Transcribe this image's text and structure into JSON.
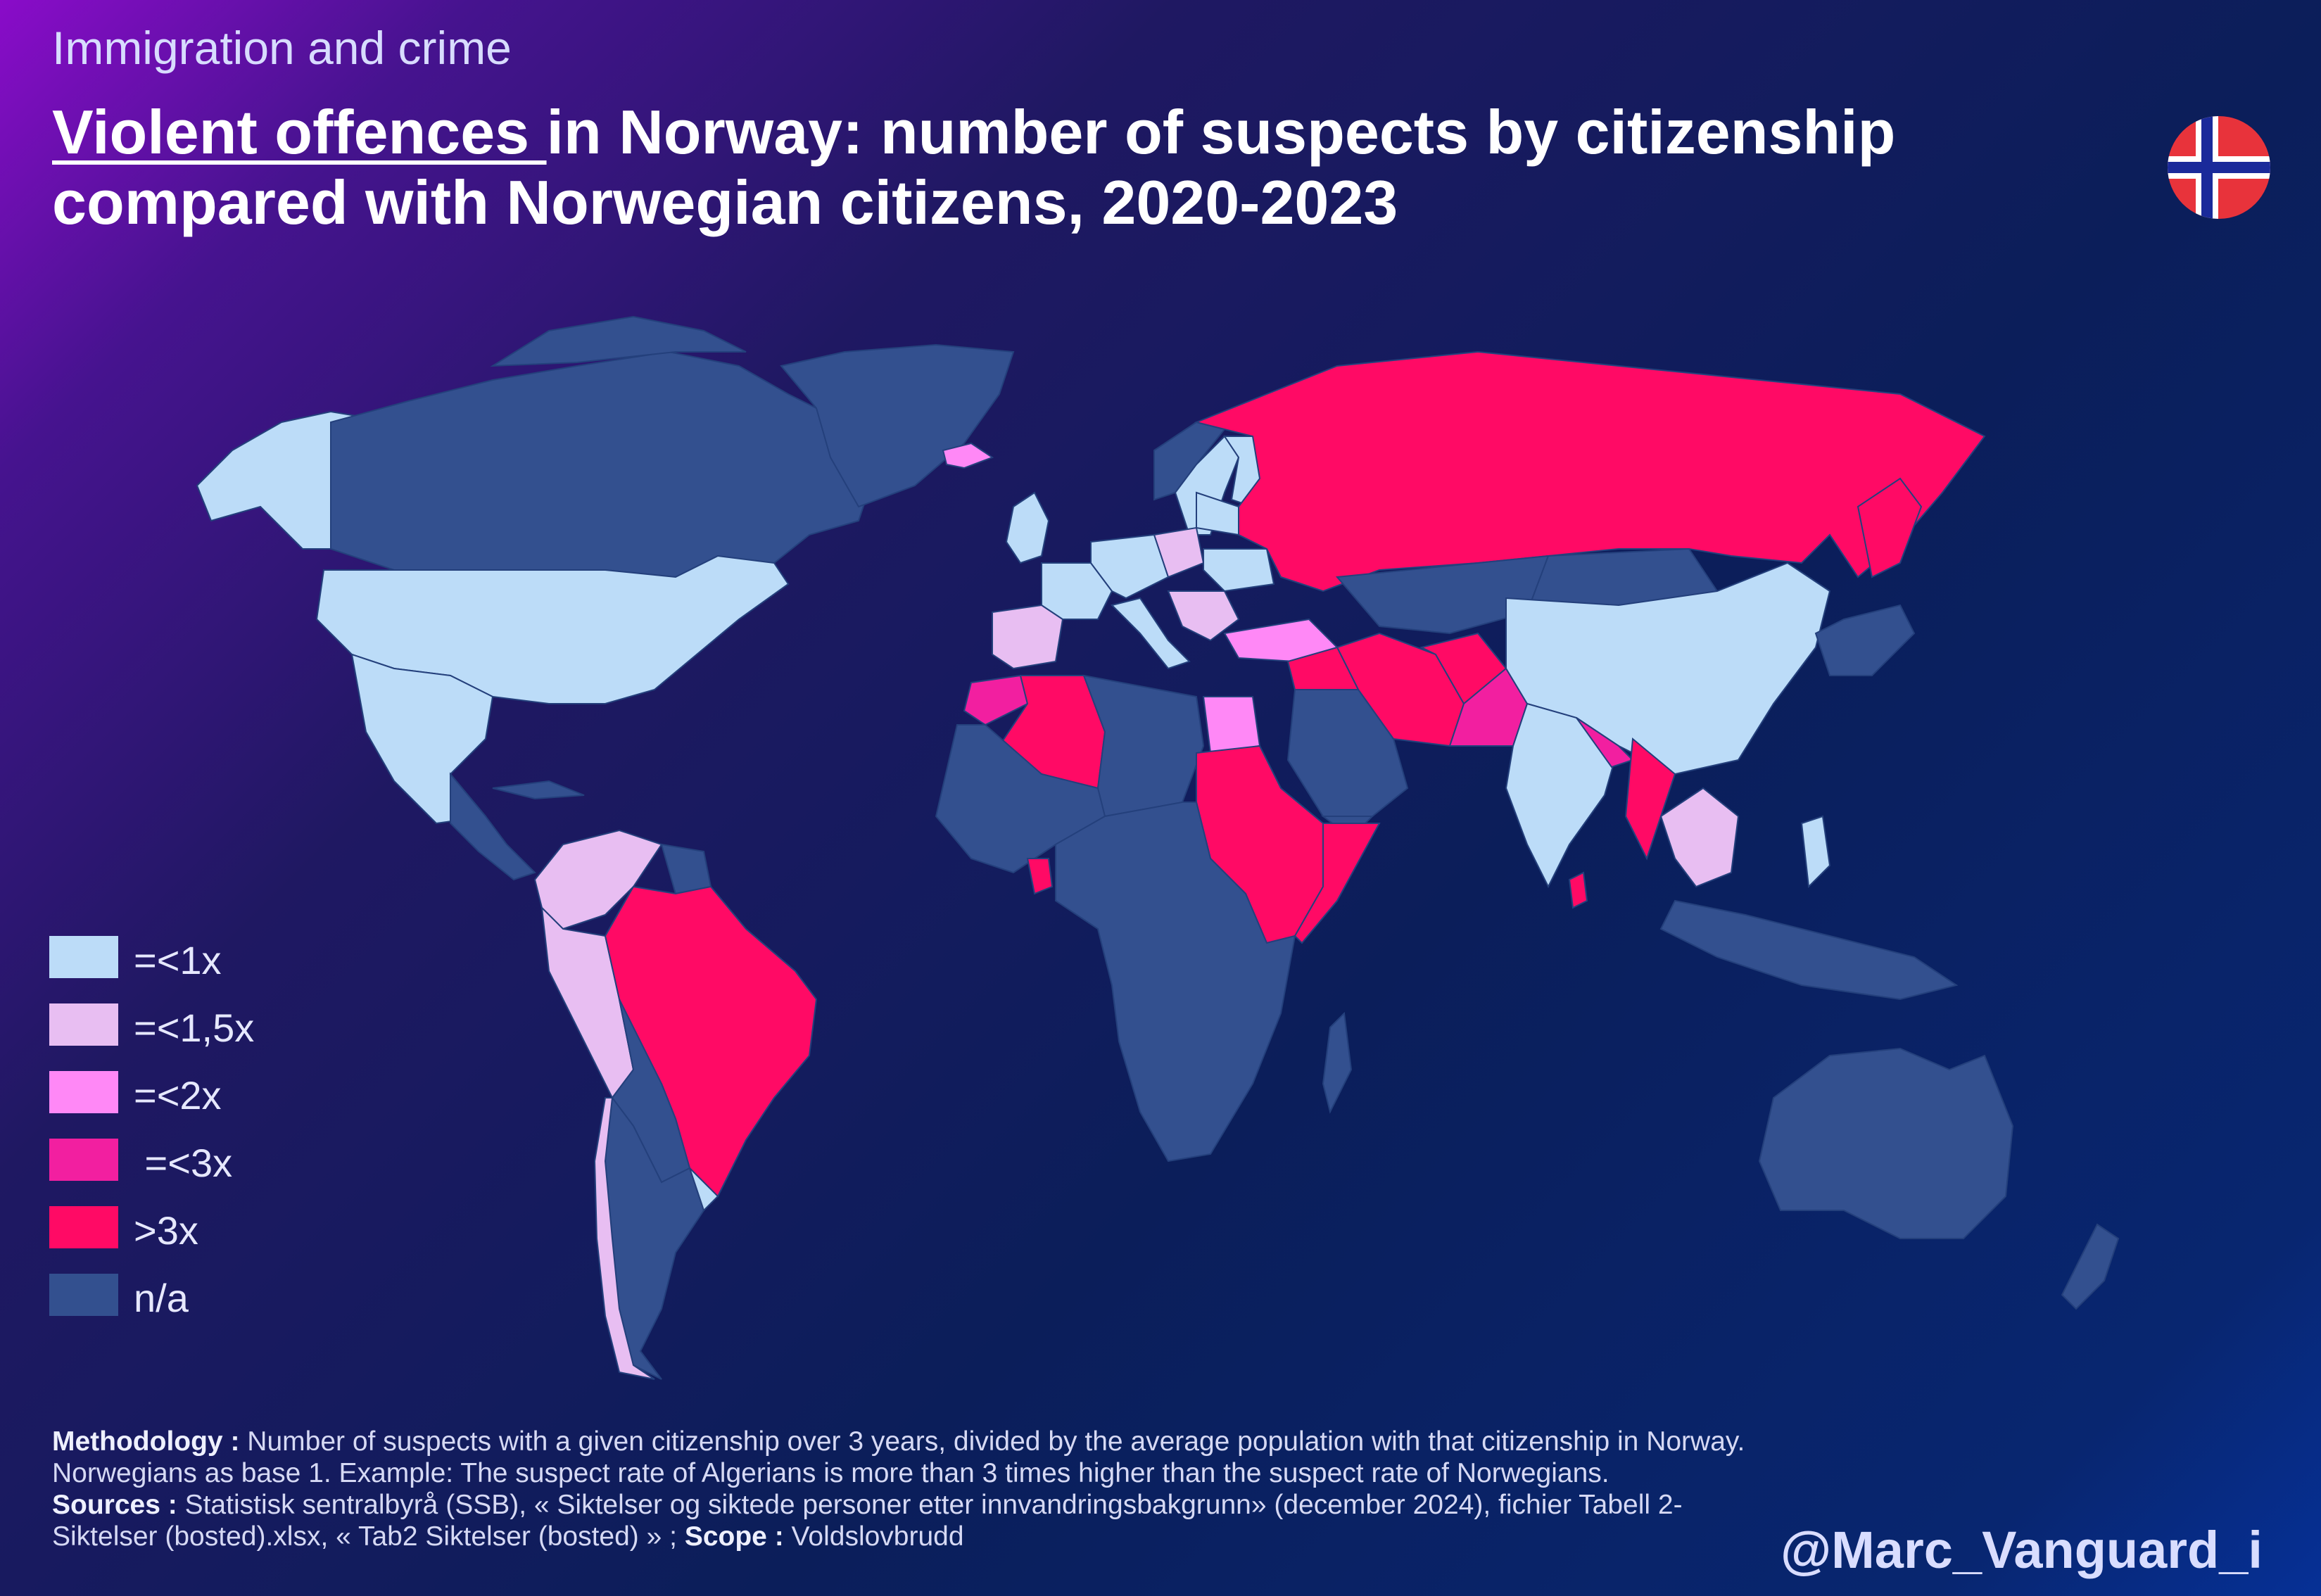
{
  "header": {
    "kicker": "Immigration and crime",
    "title_underlined": "Violent offences ",
    "title_line1_rest": "in Norway: number of suspects by citizenship",
    "title_line2": "compared with Norwegian citizens, 2020-2023"
  },
  "flag": {
    "name": "norway-flag",
    "red": "#e8333b",
    "white": "#ffffff",
    "blue": "#1a2a9a"
  },
  "legend": {
    "items": [
      {
        "label": "=<1x",
        "color": "#bcdcf8"
      },
      {
        "label": "=<1,5x",
        "color": "#e8bef2"
      },
      {
        "label": "=<2x",
        "color": "#ff88f6"
      },
      {
        "label": " =<3x",
        "color": "#f21fa0"
      },
      {
        "label": ">3x",
        "color": "#ff0a65"
      },
      {
        "label": "n/a",
        "color": "#33508f"
      }
    ]
  },
  "colors": {
    "ocean": "#0b1e5a",
    "na": "#33508f",
    "le1": "#bcdcf8",
    "le15": "#e8bef2",
    "le2": "#ff88f6",
    "le3": "#f21fa0",
    "gt3": "#ff0a65"
  },
  "footer": {
    "methodology_label": "Methodology :",
    "methodology_text": " Number of suspects with a given citizenship over 3 years, divided by the average population with that citizenship in Norway. Norwegians as base 1. Example: The suspect rate of Algerians is more than 3 times higher than the suspect rate of Norwegians.",
    "sources_label": "Sources :",
    "sources_text": " Statistisk sentralbyrå (SSB), « Siktelser og siktede personer etter innvandringsbakgrunn»  (december 2024), fichier Tabell 2-Siktelser (bosted).xlsx, « Tab2 Siktelser (bosted) » ; ",
    "scope_label": "Scope :",
    "scope_text": " Voldslovbrudd"
  },
  "handle": "@Marc_Vanguard_i"
}
